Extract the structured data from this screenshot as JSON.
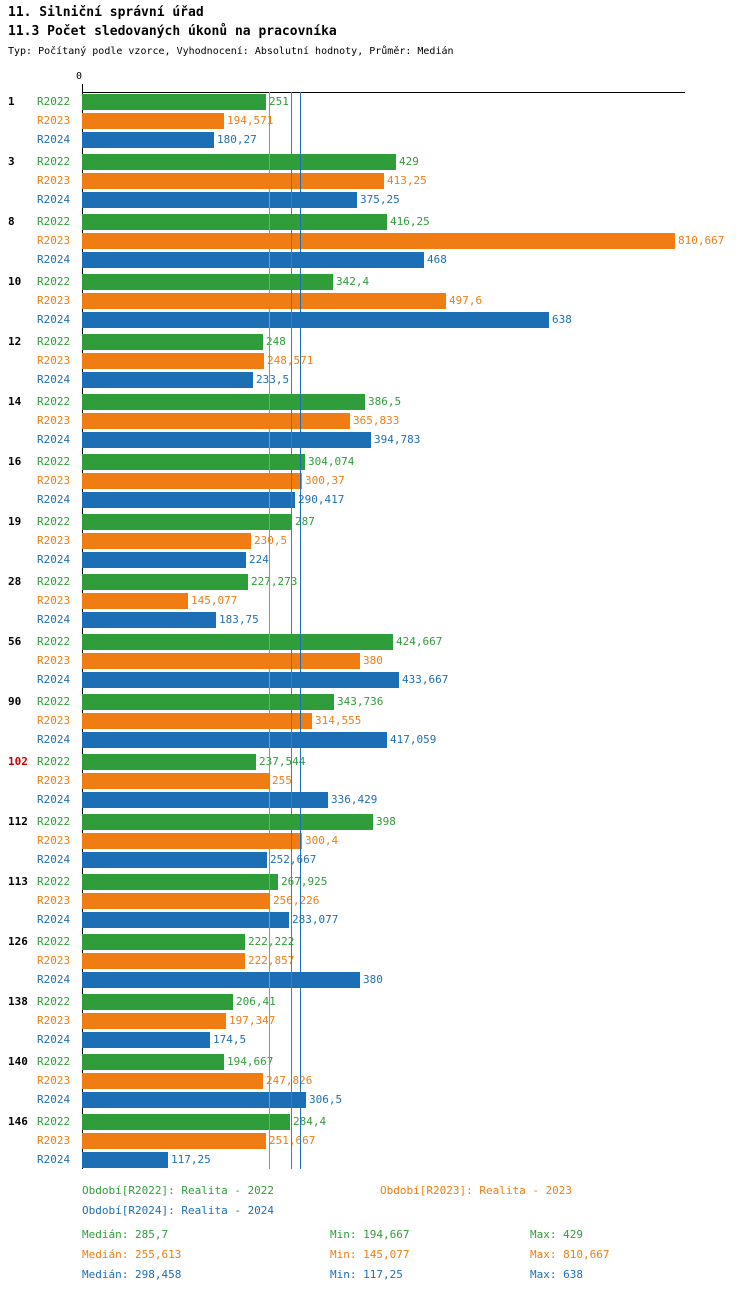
{
  "header": {
    "title": "11. Silniční správní úřad",
    "meta": "Typ: Počítaný podle vzorce, Vyhodnocení: Absolutní hodnoty, Průměr: Medián"
  },
  "colors": {
    "r2022": "#2f9d3a",
    "r2023": "#f07d13",
    "r2024": "#1d6fb5",
    "highlight": "#cc0000",
    "axis": "#000000"
  },
  "summary": {
    "r2022": {
      "median": "Medián: 285,7",
      "min": "Min: 194,667",
      "max": "Max: 429"
    },
    "r2023": {
      "median": "Medián: 255,613",
      "min": "Min: 145,077",
      "max": "Max: 810,667"
    },
    "r2024": {
      "median": "Medián: 298,458",
      "min": "Min: 117,25",
      "max": "Max: 638"
    }
  },
  "chart_data": {
    "type": "bar",
    "orientation": "horizontal",
    "title": "11.3 Počet sledovaných úkonů na pracovníka",
    "x_axis_zero_label": "0",
    "xmax": 824,
    "grid": false,
    "legend_position": "bottom",
    "legend": {
      "r2022": "Období[R2022]: Realita - 2022",
      "r2023": "Období[R2023]: Realita - 2023",
      "r2024": "Období[R2024]: Realita - 2024"
    },
    "series": [
      {
        "label": "R2022"
      },
      {
        "label": "R2023"
      },
      {
        "label": "R2024"
      }
    ],
    "medians": [
      285.7,
      255.613,
      298.458
    ],
    "groups": [
      {
        "id": "1",
        "highlight": false,
        "values": [
          251,
          194.571,
          180.27
        ],
        "labels": [
          "251",
          "194,571",
          "180,27"
        ]
      },
      {
        "id": "3",
        "highlight": false,
        "values": [
          429,
          413.25,
          375.25
        ],
        "labels": [
          "429",
          "413,25",
          "375,25"
        ]
      },
      {
        "id": "8",
        "highlight": false,
        "values": [
          416.25,
          810.667,
          468
        ],
        "labels": [
          "416,25",
          "810,667",
          "468"
        ]
      },
      {
        "id": "10",
        "highlight": false,
        "values": [
          342.4,
          497.6,
          638
        ],
        "labels": [
          "342,4",
          "497,6",
          "638"
        ]
      },
      {
        "id": "12",
        "highlight": false,
        "values": [
          248,
          248.571,
          233.5
        ],
        "labels": [
          "248",
          "248,571",
          "233,5"
        ]
      },
      {
        "id": "14",
        "highlight": false,
        "values": [
          386.5,
          365.833,
          394.783
        ],
        "labels": [
          "386,5",
          "365,833",
          "394,783"
        ]
      },
      {
        "id": "16",
        "highlight": false,
        "values": [
          304.074,
          300.37,
          290.417
        ],
        "labels": [
          "304,074",
          "300,37",
          "290,417"
        ]
      },
      {
        "id": "19",
        "highlight": false,
        "values": [
          287,
          230.5,
          224
        ],
        "labels": [
          "287",
          "230,5",
          "224"
        ]
      },
      {
        "id": "28",
        "highlight": false,
        "values": [
          227.273,
          145.077,
          183.75
        ],
        "labels": [
          "227,273",
          "145,077",
          "183,75"
        ]
      },
      {
        "id": "56",
        "highlight": false,
        "values": [
          424.667,
          380,
          433.667
        ],
        "labels": [
          "424,667",
          "380",
          "433,667"
        ]
      },
      {
        "id": "90",
        "highlight": false,
        "values": [
          343.736,
          314.555,
          417.059
        ],
        "labels": [
          "343,736",
          "314,555",
          "417,059"
        ]
      },
      {
        "id": "102",
        "highlight": true,
        "values": [
          237.544,
          255,
          336.429
        ],
        "labels": [
          "237,544",
          "255",
          "336,429"
        ]
      },
      {
        "id": "112",
        "highlight": false,
        "values": [
          398,
          300.4,
          252.667
        ],
        "labels": [
          "398",
          "300,4",
          "252,667"
        ]
      },
      {
        "id": "113",
        "highlight": false,
        "values": [
          267.925,
          256.226,
          283.077
        ],
        "labels": [
          "267,925",
          "256,226",
          "283,077"
        ]
      },
      {
        "id": "126",
        "highlight": false,
        "values": [
          222.222,
          222.857,
          380
        ],
        "labels": [
          "222,222",
          "222,857",
          "380"
        ]
      },
      {
        "id": "138",
        "highlight": false,
        "values": [
          206.41,
          197.347,
          174.5
        ],
        "labels": [
          "206,41",
          "197,347",
          "174,5"
        ]
      },
      {
        "id": "140",
        "highlight": false,
        "values": [
          194.667,
          247.826,
          306.5
        ],
        "labels": [
          "194,667",
          "247,826",
          "306,5"
        ]
      },
      {
        "id": "146",
        "highlight": false,
        "values": [
          284.4,
          251.667,
          117.25
        ],
        "labels": [
          "284,4",
          "251,667",
          "117,25"
        ]
      }
    ]
  }
}
